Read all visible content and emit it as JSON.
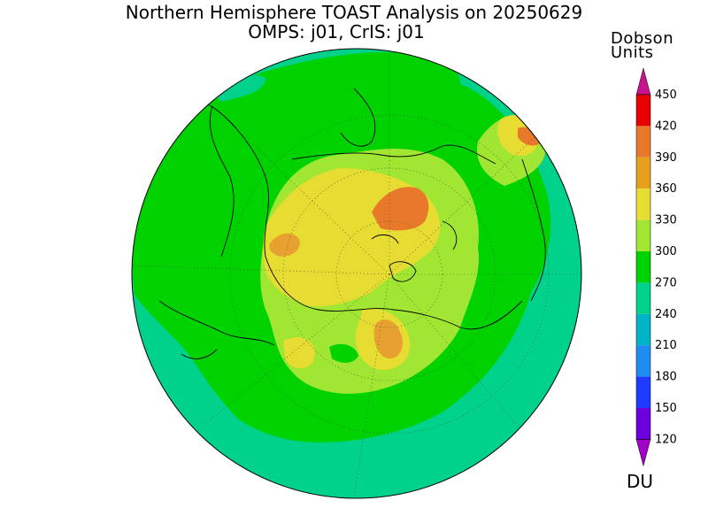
{
  "title": {
    "line1": "Northern Hemisphere TOAST Analysis on 20250629",
    "line2": "OMPS: j01, CrIS: j01"
  },
  "colorbar": {
    "title_line1": "Dobson",
    "title_line2": "Units",
    "unit": "DU",
    "levels": [
      "450",
      "420",
      "390",
      "360",
      "330",
      "300",
      "270",
      "240",
      "210",
      "180",
      "150",
      "120"
    ],
    "colors": {
      "above_450": "#c8148c",
      "420_450": "#e60000",
      "390_420": "#e8782a",
      "360_390": "#e6a01e",
      "330_360": "#e6dc32",
      "300_330": "#a0e632",
      "270_300": "#00d200",
      "240_270": "#00d28c",
      "210_240": "#00b4c8",
      "180_210": "#1e8cf0",
      "150_180": "#1e3cff",
      "120_150": "#6e00dc",
      "below_120": "#a000c8"
    }
  },
  "map": {
    "projection": "north-polar-stereographic",
    "grid": true,
    "coastlines": true
  }
}
